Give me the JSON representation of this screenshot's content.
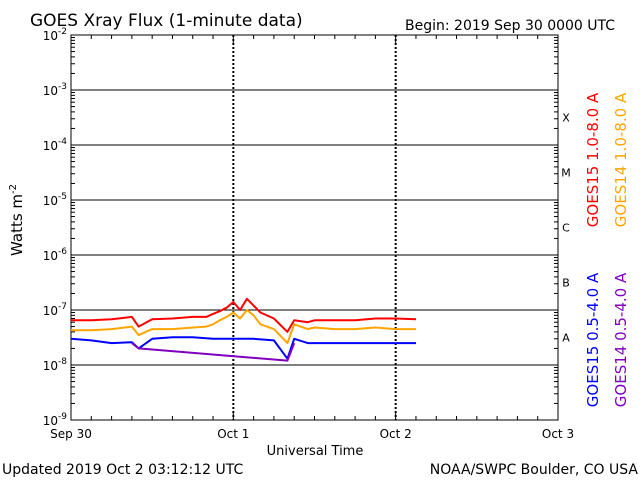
{
  "title": "GOES Xray Flux (1-minute data)",
  "begin_label": "Begin:  2019 Sep 30 0000 UTC",
  "updated_label": "Updated 2019 Oct  2 03:12:12 UTC",
  "credit": "NOAA/SWPC Boulder, CO USA",
  "chart_data": {
    "type": "line",
    "title": "GOES Xray Flux (1-minute data)",
    "xlabel": "Universal Time",
    "ylabel": "Watts m",
    "ylabel_exponent": "-2",
    "y_scale": "log",
    "ylim": [
      1e-09,
      0.01
    ],
    "xlim": [
      "2019-09-30 00:00",
      "2019-10-03 00:00"
    ],
    "x_tick_labels": [
      "Sep 30",
      "Oct 1",
      "Oct 2",
      "Oct 3"
    ],
    "y_tick_labels": [
      {
        "base": "10",
        "exp": "-9"
      },
      {
        "base": "10",
        "exp": "-8"
      },
      {
        "base": "10",
        "exp": "-7"
      },
      {
        "base": "10",
        "exp": "-6"
      },
      {
        "base": "10",
        "exp": "-5"
      },
      {
        "base": "10",
        "exp": "-4"
      },
      {
        "base": "10",
        "exp": "-3"
      },
      {
        "base": "10",
        "exp": "-2"
      }
    ],
    "flare_classes": [
      {
        "label": "A",
        "flux": 1e-08
      },
      {
        "label": "B",
        "flux": 1e-07
      },
      {
        "label": "C",
        "flux": 1e-06
      },
      {
        "label": "M",
        "flux": 1e-05
      },
      {
        "label": "X",
        "flux": 0.0001
      }
    ],
    "grid": "horizontal decades; dotted vertical day lines",
    "series": [
      {
        "name": "GOES15 1.0-8.0 A",
        "color": "#ff0000",
        "x": [
          "2019-09-30 00:00",
          "2019-09-30 03:00",
          "2019-09-30 06:00",
          "2019-09-30 09:00",
          "2019-09-30 10:00",
          "2019-09-30 12:00",
          "2019-09-30 15:00",
          "2019-09-30 18:00",
          "2019-09-30 20:00",
          "2019-09-30 21:00",
          "2019-09-30 22:00",
          "2019-09-30 23:00",
          "2019-10-01 00:00",
          "2019-10-01 01:00",
          "2019-10-01 02:00",
          "2019-10-01 03:00",
          "2019-10-01 04:00",
          "2019-10-01 06:00",
          "2019-10-01 08:00",
          "2019-10-01 09:00",
          "2019-10-01 11:00",
          "2019-10-01 12:00",
          "2019-10-01 15:00",
          "2019-10-01 18:00",
          "2019-10-01 21:00",
          "2019-10-02 00:00",
          "2019-10-02 03:00"
        ],
        "y": [
          6.5e-08,
          6.5e-08,
          6.8e-08,
          7.5e-08,
          5e-08,
          6.8e-08,
          7e-08,
          7.5e-08,
          7.5e-08,
          8.5e-08,
          9.5e-08,
          1.1e-07,
          1.4e-07,
          1e-07,
          1.6e-07,
          1.2e-07,
          9e-08,
          7e-08,
          4e-08,
          6.5e-08,
          6e-08,
          6.5e-08,
          6.5e-08,
          6.5e-08,
          7e-08,
          7e-08,
          6.8e-08
        ]
      },
      {
        "name": "GOES14 1.0-8.0 A",
        "color": "#ffa500",
        "x": [
          "2019-09-30 00:00",
          "2019-09-30 03:00",
          "2019-09-30 06:00",
          "2019-09-30 09:00",
          "2019-09-30 10:00",
          "2019-09-30 12:00",
          "2019-09-30 15:00",
          "2019-09-30 18:00",
          "2019-09-30 20:00",
          "2019-09-30 21:00",
          "2019-09-30 22:00",
          "2019-09-30 23:00",
          "2019-10-01 00:00",
          "2019-10-01 01:00",
          "2019-10-01 02:00",
          "2019-10-01 03:00",
          "2019-10-01 04:00",
          "2019-10-01 06:00",
          "2019-10-01 08:00",
          "2019-10-01 09:00",
          "2019-10-01 11:00",
          "2019-10-01 12:00",
          "2019-10-01 15:00",
          "2019-10-01 18:00",
          "2019-10-01 21:00",
          "2019-10-02 00:00",
          "2019-10-02 03:00"
        ],
        "y": [
          4.3e-08,
          4.3e-08,
          4.5e-08,
          5e-08,
          3.5e-08,
          4.5e-08,
          4.5e-08,
          4.8e-08,
          5e-08,
          5.5e-08,
          6.5e-08,
          7.5e-08,
          9e-08,
          7e-08,
          1e-07,
          8e-08,
          5.5e-08,
          4.5e-08,
          2.5e-08,
          5.5e-08,
          4.5e-08,
          4.8e-08,
          4.5e-08,
          4.5e-08,
          4.8e-08,
          4.5e-08,
          4.5e-08
        ]
      },
      {
        "name": "GOES15 0.5-4.0 A",
        "color": "#0000ff",
        "x": [
          "2019-09-30 00:00",
          "2019-09-30 03:00",
          "2019-09-30 06:00",
          "2019-09-30 09:00",
          "2019-09-30 10:00",
          "2019-09-30 12:00",
          "2019-09-30 15:00",
          "2019-09-30 18:00",
          "2019-09-30 21:00",
          "2019-10-01 00:00",
          "2019-10-01 03:00",
          "2019-10-01 06:00",
          "2019-10-01 08:00",
          "2019-10-01 09:00",
          "2019-10-01 11:00",
          "2019-10-01 12:00",
          "2019-10-01 15:00",
          "2019-10-01 18:00",
          "2019-10-01 21:00",
          "2019-10-02 00:00",
          "2019-10-02 03:00"
        ],
        "y": [
          3e-08,
          2.8e-08,
          2.5e-08,
          2.6e-08,
          2e-08,
          3e-08,
          3.2e-08,
          3.2e-08,
          3e-08,
          3e-08,
          3e-08,
          2.8e-08,
          1.3e-08,
          3e-08,
          2.5e-08,
          2.5e-08,
          2.5e-08,
          2.5e-08,
          2.5e-08,
          2.5e-08,
          2.5e-08
        ]
      },
      {
        "name": "GOES14 0.5-4.0 A",
        "color": "#8000c0",
        "x": [
          "2019-09-30 09:00",
          "2019-09-30 10:00",
          "2019-10-01 08:00",
          "2019-10-01 09:00"
        ],
        "y": [
          2.5e-08,
          2e-08,
          1.2e-08,
          2.5e-08
        ]
      }
    ]
  }
}
